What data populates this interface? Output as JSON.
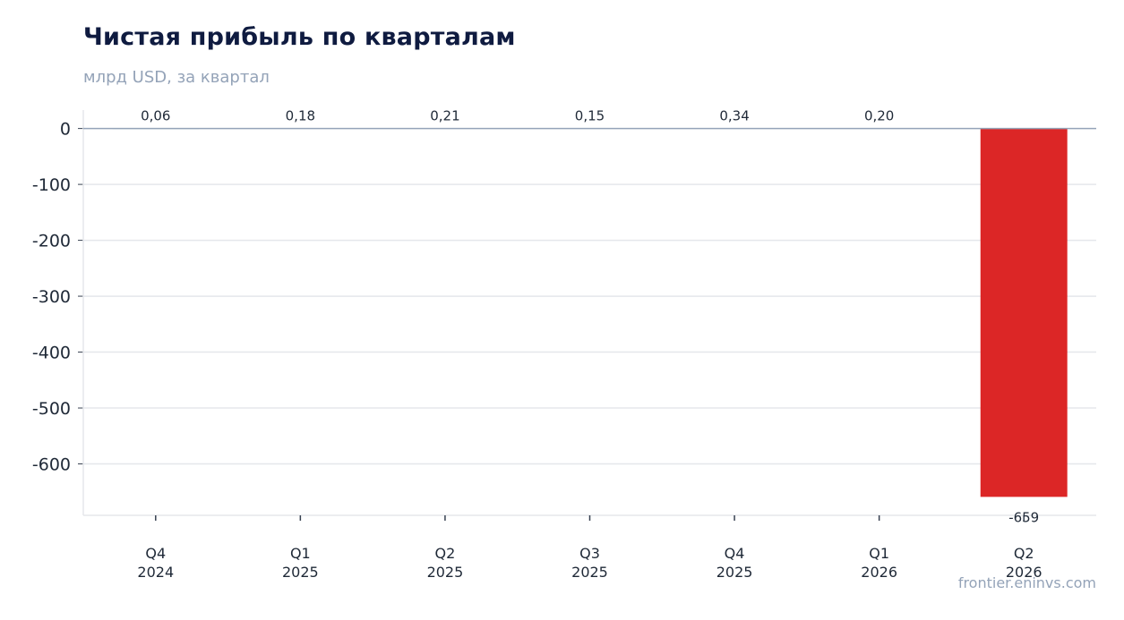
{
  "chart_data": {
    "type": "bar",
    "title": "Чистая прибыль по кварталам",
    "subtitle": "млрд USD, за квартал",
    "categories": [
      [
        "Q4",
        "2024"
      ],
      [
        "Q1",
        "2025"
      ],
      [
        "Q2",
        "2025"
      ],
      [
        "Q3",
        "2025"
      ],
      [
        "Q4",
        "2025"
      ],
      [
        "Q1",
        "2026"
      ],
      [
        "Q2",
        "2026"
      ]
    ],
    "values": [
      0.06,
      0.18,
      0.21,
      0.15,
      0.34,
      0.2,
      -659
    ],
    "value_labels": [
      "0,06",
      "0,18",
      "0,21",
      "0,15",
      "0,34",
      "0,20",
      "-659"
    ],
    "yticks": [
      0,
      -100,
      -200,
      -300,
      -400,
      -500,
      -600
    ],
    "ylim": [
      -692,
      33
    ],
    "grid": true,
    "colors": {
      "positive": "#16a34a",
      "negative": "#dc2626",
      "grid": "#e5e7eb",
      "zero_line": "#94a3b8"
    }
  },
  "source": "frontier.eninvs.com"
}
